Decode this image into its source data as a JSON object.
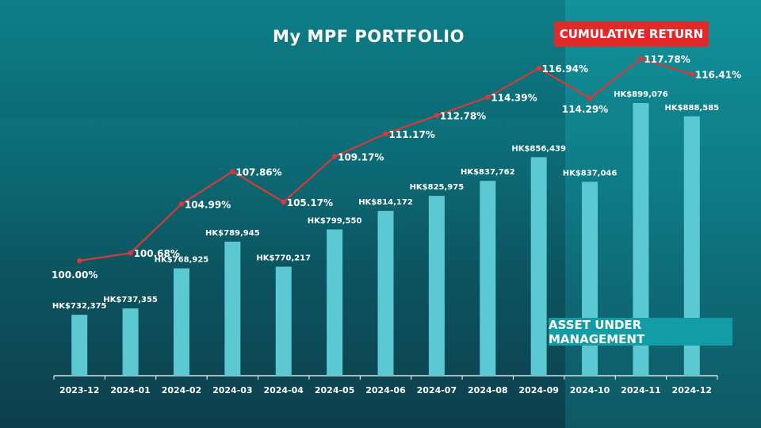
{
  "slide": {
    "title": "My MPF PORTFOLIO",
    "cumulative_return_label": "CUMULATIVE RETURN",
    "aum_label": "ASSET UNDER MANAGEMENT"
  },
  "colors": {
    "bar": "#5cc8d2",
    "line": "#d63a3a",
    "axis": "#ffffff",
    "badge_return": "#e12b2b",
    "badge_aum": "#129ca5"
  },
  "chart_data": {
    "type": "bar",
    "title": "My MPF PORTFOLIO",
    "categories": [
      "2023-12",
      "2024-01",
      "2024-02",
      "2024-03",
      "2024-04",
      "2024-05",
      "2024-06",
      "2024-07",
      "2024-08",
      "2024-09",
      "2024-10",
      "2024-11",
      "2024-12"
    ],
    "series": [
      {
        "name": "ASSET UNDER MANAGEMENT",
        "type": "bar",
        "values": [
          732375,
          737355,
          768925,
          789945,
          770217,
          799550,
          814172,
          825975,
          837762,
          856439,
          837046,
          899076,
          888585
        ],
        "labels": [
          "HK$732,375",
          "HK$737,355",
          "HK$768,925",
          "HK$789,945",
          "HK$770,217",
          "HK$799,550",
          "HK$814,172",
          "HK$825,975",
          "HK$837,762",
          "HK$856,439",
          "HK$837,046",
          "HK$899,076",
          "HK$888,585"
        ]
      },
      {
        "name": "CUMULATIVE RETURN",
        "type": "line",
        "values": [
          100.0,
          100.68,
          104.99,
          107.86,
          105.17,
          109.17,
          111.17,
          112.78,
          114.39,
          116.94,
          114.29,
          117.78,
          116.41
        ],
        "labels": [
          "100.00%",
          "100.68%",
          "104.99%",
          "107.86%",
          "105.17%",
          "109.17%",
          "111.17%",
          "112.78%",
          "114.39%",
          "116.94%",
          "114.29%",
          "117.78%",
          "116.41%"
        ]
      }
    ],
    "grid": false,
    "legend": "none"
  }
}
